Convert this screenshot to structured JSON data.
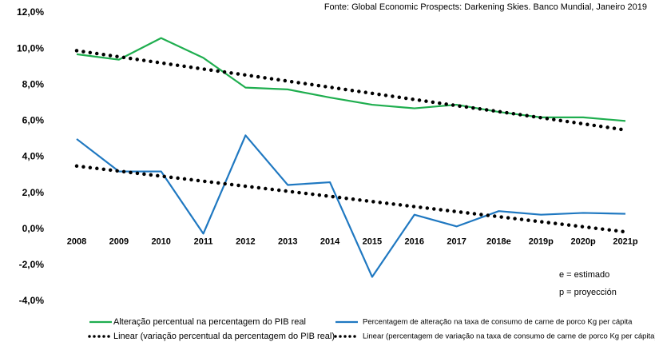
{
  "chart_data": {
    "type": "line",
    "source": "Fonte: Global Economic Prospects: Darkening Skies. Banco Mundial, Janeiro 2019",
    "annotations": [
      "e = estimado",
      "p = proyección"
    ],
    "categories": [
      "2008",
      "2009",
      "2010",
      "2011",
      "2012",
      "2013",
      "2014",
      "2015",
      "2016",
      "2017",
      "2018e",
      "2019p",
      "2020p",
      "2021p"
    ],
    "series": [
      {
        "name": "Alteração percentual na percentagem do PIB real",
        "color": "#1fae4f",
        "style": "solid",
        "values": [
          9.7,
          9.4,
          10.6,
          9.5,
          7.85,
          7.75,
          7.3,
          6.9,
          6.7,
          6.9,
          6.5,
          6.2,
          6.2,
          6.0
        ]
      },
      {
        "name": "Percentagem de alteração na taxa de consumo de carne de porco Kg per cápita",
        "color": "#1f78c1",
        "style": "solid",
        "values": [
          5.0,
          3.2,
          3.2,
          -0.25,
          5.2,
          2.45,
          2.6,
          -2.65,
          0.8,
          0.15,
          1.0,
          0.8,
          0.9,
          0.85
        ]
      },
      {
        "name": "Linear (variação percentual da percentagem do PIB real)",
        "color": "#000000",
        "style": "dotted",
        "values": [
          9.9,
          9.56,
          9.22,
          8.88,
          8.55,
          8.21,
          7.87,
          7.53,
          7.19,
          6.85,
          6.52,
          6.18,
          5.84,
          5.5
        ]
      },
      {
        "name": "Linear (percentagem de variação na taxa de consumo de carne de porco Kg per cápita)",
        "color": "#000000",
        "style": "dotted",
        "values": [
          3.5,
          3.22,
          2.94,
          2.66,
          2.38,
          2.1,
          1.82,
          1.53,
          1.25,
          0.97,
          0.69,
          0.41,
          0.13,
          -0.15
        ]
      }
    ],
    "ylim": [
      -4,
      12
    ],
    "yticks": [
      {
        "value": -4,
        "label": "-4,0%"
      },
      {
        "value": -2,
        "label": "-2,0%"
      },
      {
        "value": 0,
        "label": "0,0%"
      },
      {
        "value": 2,
        "label": "2,0%"
      },
      {
        "value": 4,
        "label": "4,0%"
      },
      {
        "value": 6,
        "label": "6,0%"
      },
      {
        "value": 8,
        "label": "8,0%"
      },
      {
        "value": 10,
        "label": "10,0%"
      },
      {
        "value": 12,
        "label": "12,0%"
      }
    ],
    "grid": false
  }
}
